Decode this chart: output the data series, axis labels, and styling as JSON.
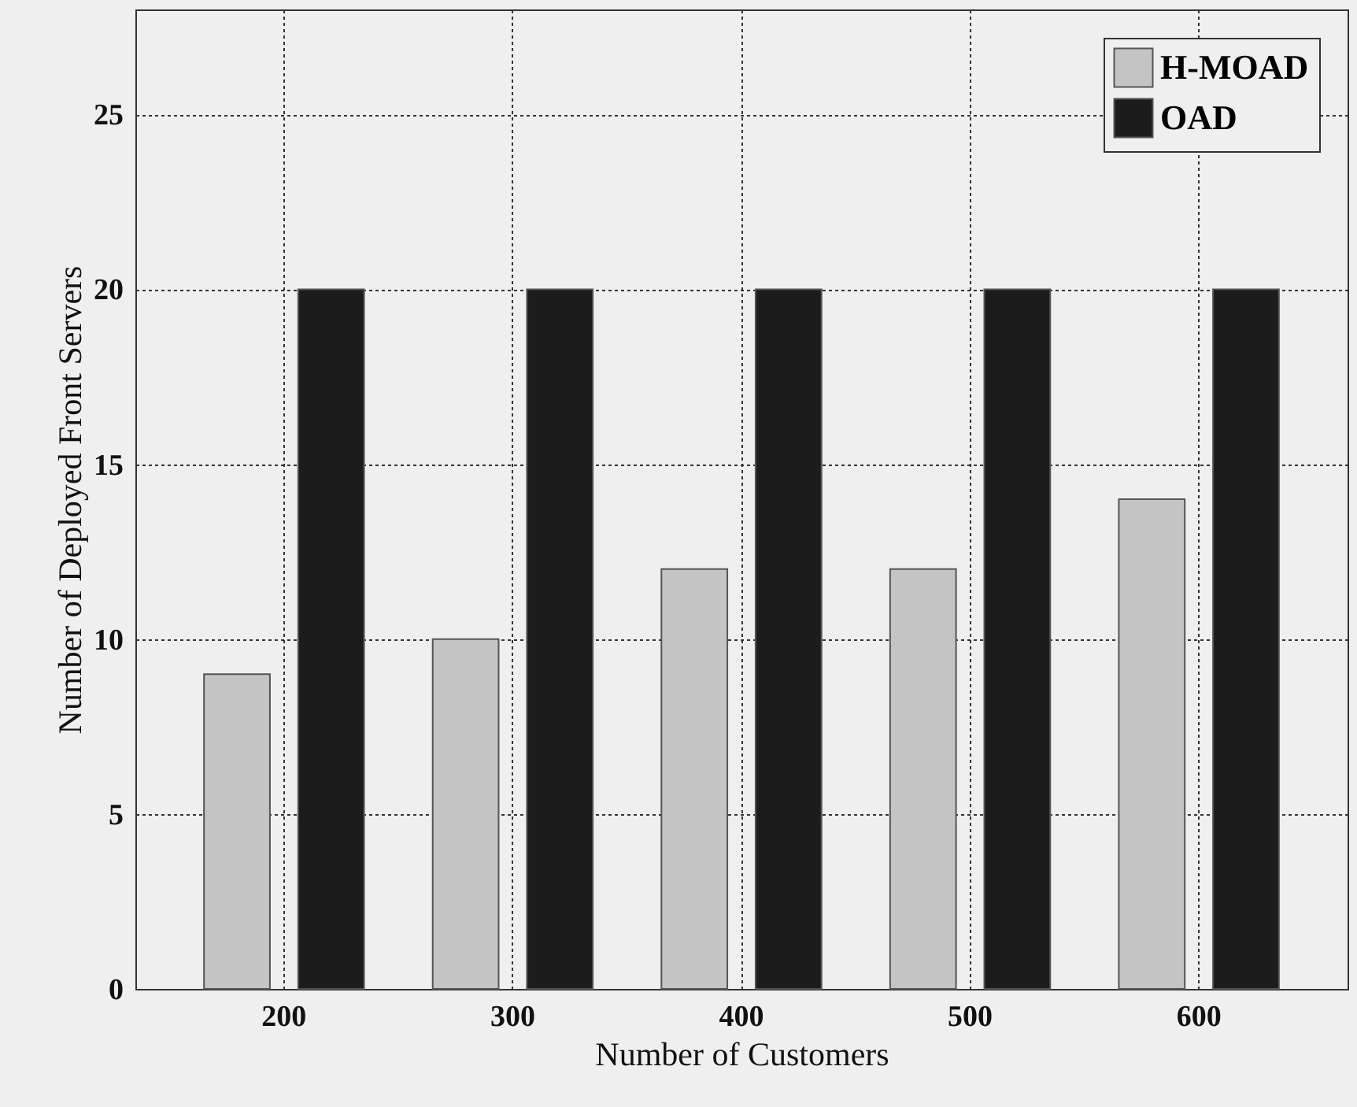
{
  "chart_data": {
    "type": "bar",
    "xlabel": "Number of Customers",
    "ylabel": "Number of Deployed Front Servers",
    "categories": [
      "200",
      "300",
      "400",
      "500",
      "600"
    ],
    "series": [
      {
        "name": "H-MOAD",
        "color": "#c4c4c4",
        "values": [
          9,
          10,
          12,
          12,
          14
        ]
      },
      {
        "name": "OAD",
        "color": "#1c1c1c",
        "values": [
          20,
          20,
          20,
          20,
          20
        ]
      }
    ],
    "ylim": [
      0,
      28
    ],
    "yticks": [
      0,
      5,
      10,
      15,
      20,
      25
    ],
    "grid": true,
    "legend": "top right"
  }
}
